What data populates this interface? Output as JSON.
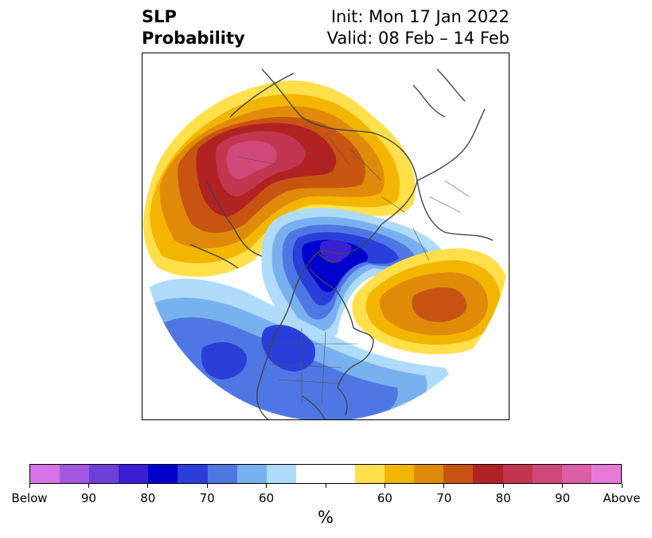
{
  "title": {
    "left_line1": "SLP",
    "left_line2": "Probability",
    "right_line1": "Init: Mon 17 Jan 2022",
    "right_line2": "Valid: 08 Feb – 14 Feb"
  },
  "colorbar": {
    "colors": [
      "#d474e8",
      "#a257e0",
      "#6d3fdb",
      "#3b1fd4",
      "#0000cc",
      "#2a3fd9",
      "#4f77e4",
      "#78b0ef",
      "#aedbfa",
      "#ffffff",
      "#ffffff",
      "#ffe04a",
      "#f2b600",
      "#e08a0a",
      "#c85412",
      "#b22222",
      "#c23650",
      "#d0487a",
      "#dc5ea6",
      "#e878d8"
    ],
    "tick_labels": [
      "Below",
      "90",
      "80",
      "70",
      "60",
      "60",
      "70",
      "80",
      "90",
      "Above"
    ],
    "unit": "%"
  },
  "map": {
    "projection": "north-polar-stereographic",
    "land_color": "#444444"
  }
}
